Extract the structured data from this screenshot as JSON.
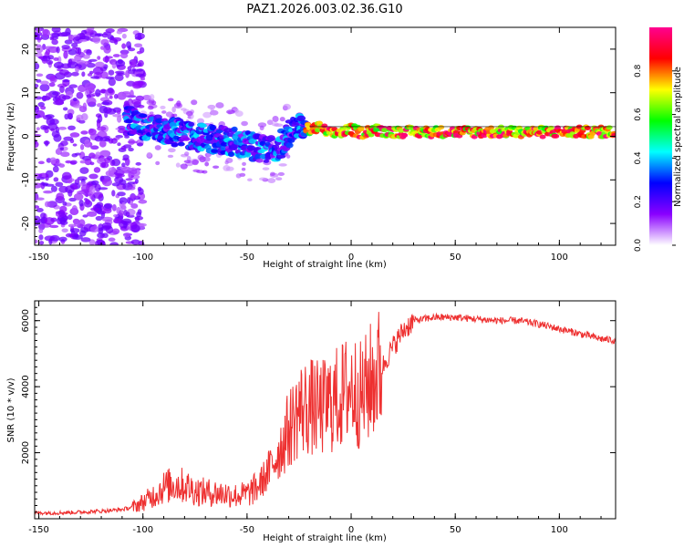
{
  "figure": {
    "title": "PAZ1.2026.003.02.36.G10"
  },
  "chart_data": [
    {
      "type": "heatmap",
      "xlabel": "Height of straight line (km)",
      "ylabel": "Frequency (Hz)",
      "xlim": [
        -152,
        127
      ],
      "ylim": [
        -25,
        25
      ],
      "xticks": [
        -150,
        -100,
        -50,
        0,
        50,
        100
      ],
      "yticks": [
        -20,
        -10,
        0,
        10,
        20
      ],
      "colorbar": {
        "label": "Normalized spectral amplitude",
        "range": [
          0,
          1
        ],
        "ticks": [
          "0.0",
          "0.2",
          "0.4",
          "0.6",
          "0.8"
        ],
        "colors": [
          "#ffffff",
          "#8a00ff",
          "#0000ff",
          "#00ffff",
          "#00ff00",
          "#ffff00",
          "#ff0000",
          "#ff0090"
        ]
      },
      "grid": false,
      "ridge": {
        "x": [
          -105,
          -100,
          -90,
          -80,
          -70,
          -60,
          -50,
          -40,
          -35,
          -30,
          -25,
          -20,
          -15,
          -10,
          -5,
          0,
          5,
          10,
          20,
          40,
          60,
          80,
          100,
          127
        ],
        "y": [
          3.5,
          2.5,
          1.5,
          0.5,
          -0.5,
          -1.0,
          -1.8,
          -3.5,
          -2.5,
          0.5,
          2.5,
          1.5,
          2.0,
          0.5,
          1.0,
          1.5,
          0.8,
          1.5,
          1.0,
          1.0,
          1.0,
          1.0,
          1.0,
          1.0
        ]
      }
    },
    {
      "type": "line",
      "xlabel": "Height of straight line (km)",
      "ylabel": "SNR (10 * v/v)",
      "xlim": [
        -152,
        127
      ],
      "ylim": [
        0,
        6600
      ],
      "xticks": [
        -150,
        -100,
        -50,
        0,
        50,
        100
      ],
      "yticks": [
        2000,
        4000,
        6000
      ],
      "grid": false,
      "series": [
        {
          "color": "#ee3030",
          "x": [
            -152,
            -140,
            -130,
            -120,
            -110,
            -105,
            -100,
            -95,
            -90,
            -85,
            -80,
            -75,
            -70,
            -65,
            -60,
            -55,
            -50,
            -45,
            -40,
            -35,
            -30,
            -25,
            -20,
            -15,
            -10,
            -5,
            0,
            5,
            10,
            15,
            20,
            25,
            30,
            40,
            50,
            60,
            70,
            80,
            90,
            100,
            110,
            120,
            127
          ],
          "y": [
            180,
            180,
            200,
            230,
            280,
            350,
            500,
            700,
            950,
            1050,
            1000,
            850,
            800,
            780,
            750,
            700,
            750,
            950,
            1400,
            2000,
            2700,
            3300,
            3400,
            3300,
            3500,
            3700,
            4000,
            3700,
            4200,
            4600,
            5200,
            5700,
            6000,
            6100,
            6100,
            6050,
            6000,
            6000,
            5900,
            5750,
            5600,
            5450,
            5400
          ]
        }
      ]
    }
  ]
}
